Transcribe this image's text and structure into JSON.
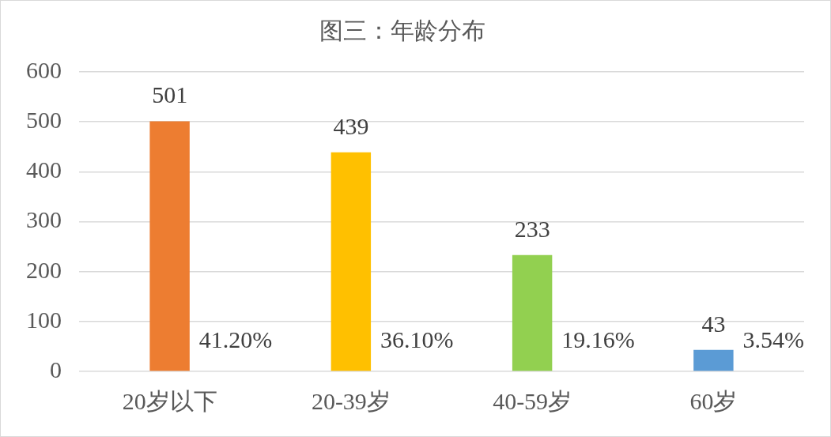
{
  "chart_data": {
    "type": "bar",
    "title": "图三：年龄分布",
    "categories": [
      "20岁以下",
      "20-39岁",
      "40-59岁",
      "60岁"
    ],
    "values": [
      501,
      439,
      233,
      43
    ],
    "colors": [
      "#ed7d31",
      "#ffc000",
      "#92d050",
      "#5b9bd5"
    ],
    "ylim": [
      0,
      600
    ],
    "yticks": [
      0,
      100,
      200,
      300,
      400,
      500,
      600
    ],
    "grid": "y",
    "data_labels": true,
    "annotations": [
      "41.20%",
      "36.10%",
      "19.16%",
      "3.54%"
    ]
  }
}
